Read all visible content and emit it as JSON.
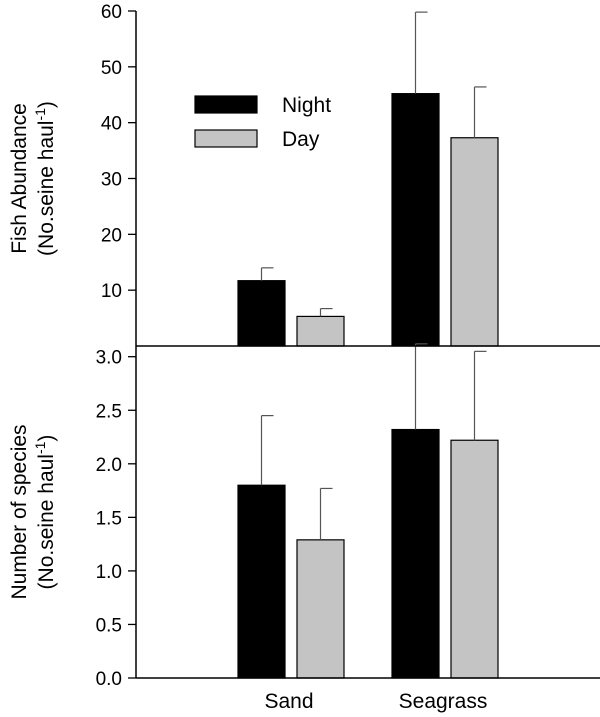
{
  "chart_data": [
    {
      "type": "bar",
      "categories": [
        "Sand",
        "Seagrass"
      ],
      "series": [
        {
          "name": "Night",
          "values": [
            11.7,
            45.2
          ],
          "error": [
            2.3,
            14.6
          ],
          "color": "#000000"
        },
        {
          "name": "Day",
          "values": [
            5.3,
            37.3
          ],
          "error": [
            1.4,
            9.1
          ],
          "color": "#c4c4c4"
        }
      ],
      "ylabel": [
        "Fish Abundance",
        "(No.seine haul",
        "-1",
        ")"
      ],
      "ylim": [
        0,
        60
      ],
      "yticks": [
        10,
        20,
        30,
        40,
        50,
        60
      ],
      "legend": "top-left",
      "grid": false
    },
    {
      "type": "bar",
      "categories": [
        "Sand",
        "Seagrass"
      ],
      "series": [
        {
          "name": "Night",
          "values": [
            1.8,
            2.32
          ],
          "error": [
            0.65,
            0.8
          ],
          "color": "#000000"
        },
        {
          "name": "Day",
          "values": [
            1.29,
            2.22
          ],
          "error": [
            0.48,
            0.83
          ],
          "color": "#c4c4c4"
        }
      ],
      "ylabel": [
        "Number of species",
        "(No.seine haul",
        "-1",
        ")"
      ],
      "ylim": [
        0,
        3.1
      ],
      "yticks": [
        "0.0",
        "0.5",
        "1.0",
        "1.5",
        "2.0",
        "2.5",
        "3.0"
      ],
      "xticklabels": [
        "Sand",
        "Seagrass"
      ],
      "grid": false
    }
  ]
}
